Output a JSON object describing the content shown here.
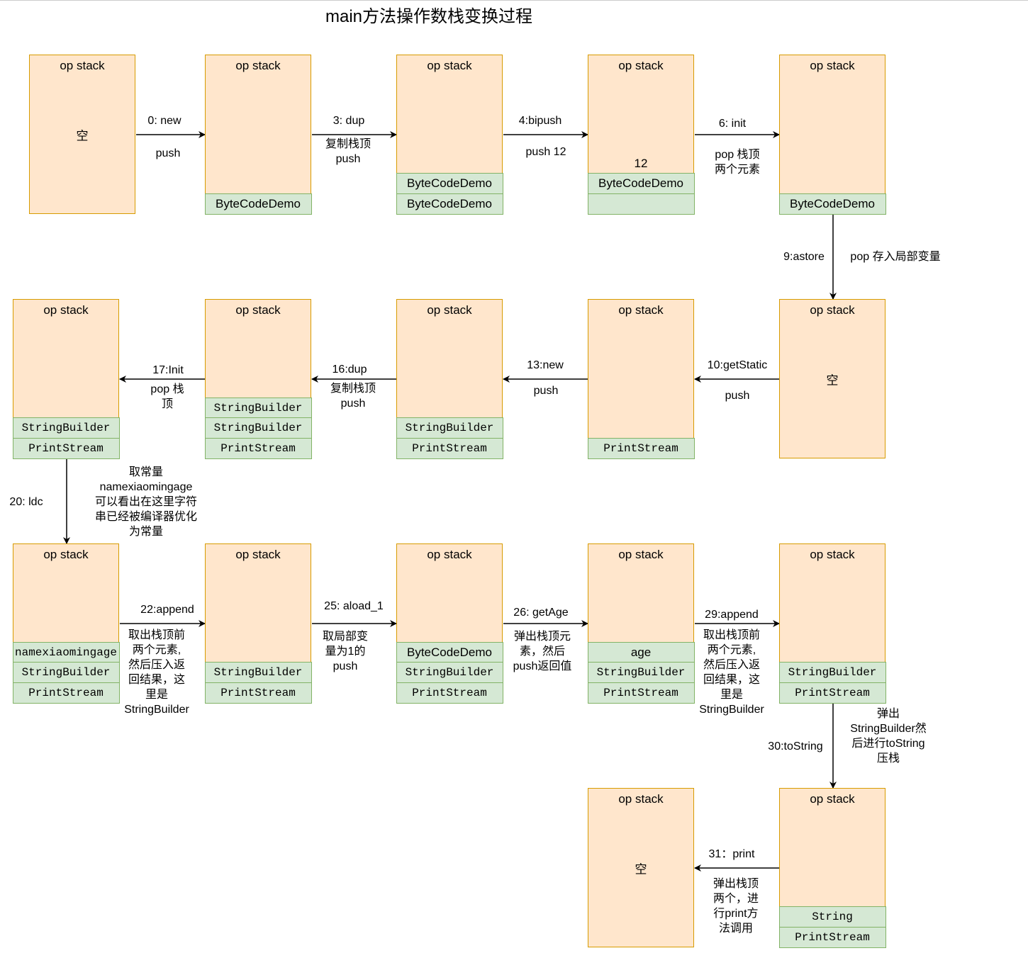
{
  "title": "main方法操作数栈变换过程",
  "header_label": "op stack",
  "empty_label": "空",
  "stacks": [
    {
      "id": "s1",
      "empty": true,
      "cells": []
    },
    {
      "id": "s2",
      "cells": [
        {
          "t": "ByteCodeDemo"
        }
      ]
    },
    {
      "id": "s3",
      "cells": [
        {
          "t": "ByteCodeDemo"
        },
        {
          "t": "ByteCodeDemo"
        }
      ]
    },
    {
      "id": "s4",
      "cells": [
        {
          "t": "12",
          "plain": true
        },
        {
          "t": "ByteCodeDemo"
        },
        {
          "t": ""
        }
      ]
    },
    {
      "id": "s5",
      "cells": [
        {
          "t": "ByteCodeDemo"
        }
      ]
    },
    {
      "id": "s6",
      "empty": true,
      "cells": []
    },
    {
      "id": "s7",
      "cells": [
        {
          "t": "PrintStream",
          "mono": true
        }
      ]
    },
    {
      "id": "s8",
      "cells": [
        {
          "t": "StringBuilder",
          "mono": true
        },
        {
          "t": "PrintStream",
          "mono": true
        }
      ]
    },
    {
      "id": "s9",
      "cells": [
        {
          "t": "StringBuilder",
          "mono": true
        },
        {
          "t": "StringBuilder",
          "mono": true
        },
        {
          "t": "PrintStream",
          "mono": true
        }
      ]
    },
    {
      "id": "s10",
      "cells": [
        {
          "t": "StringBuilder",
          "mono": true
        },
        {
          "t": "PrintStream",
          "mono": true
        }
      ]
    },
    {
      "id": "s11",
      "cells": [
        {
          "t": "namexiaomingage",
          "mono": true
        },
        {
          "t": "StringBuilder",
          "mono": true
        },
        {
          "t": "PrintStream",
          "mono": true
        }
      ]
    },
    {
      "id": "s12",
      "cells": [
        {
          "t": "StringBuilder",
          "mono": true
        },
        {
          "t": "PrintStream",
          "mono": true
        }
      ]
    },
    {
      "id": "s13",
      "cells": [
        {
          "t": "ByteCodeDemo"
        },
        {
          "t": "StringBuilder",
          "mono": true
        },
        {
          "t": "PrintStream",
          "mono": true
        }
      ]
    },
    {
      "id": "s14",
      "cells": [
        {
          "t": "age"
        },
        {
          "t": "StringBuilder",
          "mono": true
        },
        {
          "t": "PrintStream",
          "mono": true
        }
      ]
    },
    {
      "id": "s15",
      "cells": [
        {
          "t": "StringBuilder",
          "mono": true
        },
        {
          "t": "PrintStream",
          "mono": true
        }
      ]
    },
    {
      "id": "s16",
      "cells": [
        {
          "t": "String",
          "mono": true
        },
        {
          "t": "PrintStream",
          "mono": true
        }
      ]
    },
    {
      "id": "s17",
      "empty": true,
      "cells": []
    }
  ],
  "edges": [
    {
      "op": "0: new",
      "desc": "push"
    },
    {
      "op": "3: dup",
      "desc": "复制栈顶\npush"
    },
    {
      "op": "4:bipush",
      "desc": "push 12"
    },
    {
      "op": "6: init",
      "desc": "pop 栈顶\n两个元素"
    },
    {
      "op": "9:astore",
      "desc": "pop 存入局部变量"
    },
    {
      "op": "10:getStatic",
      "desc": "push"
    },
    {
      "op": "13:new",
      "desc": "push"
    },
    {
      "op": "16:dup",
      "desc": "复制栈顶\npush"
    },
    {
      "op": "17:Init",
      "desc": "pop 栈\n顶"
    },
    {
      "op": "20: ldc",
      "desc": "取常量\nnamexiaomingage\n可以看出在这里字符\n串已经被编译器优化\n为常量"
    },
    {
      "op": "22:append",
      "desc": "取出栈顶前\n两个元素,\n然后压入返\n回结果，这\n里是\nStringBuilder"
    },
    {
      "op": "25: aload_1",
      "desc": "取局部变\n量为1的\npush"
    },
    {
      "op": "26: getAge",
      "desc": "弹出栈顶元\n素，然后\npush返回值"
    },
    {
      "op": "29:append",
      "desc": "取出栈顶前\n两个元素,\n然后压入返\n回结果，这\n里是\nStringBuilder"
    },
    {
      "op": "30:toString",
      "desc": "弹出\nStringBuilder然\n后进行toString\n压栈"
    },
    {
      "op": "31：print",
      "desc": "弹出栈顶\n两个，进\n行print方\n法调用"
    }
  ],
  "colors": {
    "stack_fill": "#ffe6cc",
    "stack_border": "#d79b00",
    "cell_fill": "#d5e8d4",
    "cell_border": "#82b366"
  }
}
